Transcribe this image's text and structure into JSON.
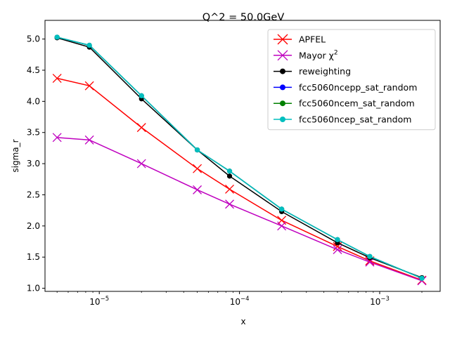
{
  "chart_data": {
    "type": "line",
    "title": "Q^2 = 50.0GeV",
    "xlabel": "x",
    "ylabel": "sigma_r",
    "xscale": "log",
    "xlim": [
      4.1e-06,
      0.0027
    ],
    "ylim": [
      0.95,
      5.3
    ],
    "yticks": [
      1.0,
      1.5,
      2.0,
      2.5,
      3.0,
      3.5,
      4.0,
      4.5,
      5.0
    ],
    "ytick_labels": [
      "1.0",
      "1.5",
      "2.0",
      "2.5",
      "3.0",
      "3.5",
      "4.0",
      "4.5",
      "5.0"
    ],
    "xticks": [
      1e-05,
      0.0001,
      0.001
    ],
    "xtick_labels": [
      {
        "base": "10",
        "exp": "−5"
      },
      {
        "base": "10",
        "exp": "−4"
      },
      {
        "base": "10",
        "exp": "−3"
      }
    ],
    "x": [
      5e-06,
      8.5e-06,
      2e-05,
      5e-05,
      8.5e-05,
      0.0002,
      0.0005,
      0.00085,
      0.002
    ],
    "legend_position": "upper-right",
    "grid": false,
    "series": [
      {
        "name": "APFEL",
        "color": "#ff0000",
        "marker": "x",
        "values": [
          4.37,
          4.25,
          3.58,
          2.92,
          2.59,
          2.09,
          1.67,
          1.44,
          1.13
        ]
      },
      {
        "name": "Mayor χ",
        "name_sup": "2",
        "color": "#bf00bf",
        "marker": "x",
        "values": [
          3.42,
          3.38,
          3.0,
          2.58,
          2.35,
          2.0,
          1.62,
          1.42,
          1.12
        ]
      },
      {
        "name": "reweighting",
        "color": "#000000",
        "marker": "o",
        "values": [
          5.02,
          4.87,
          4.04,
          3.22,
          2.8,
          2.23,
          1.73,
          1.49,
          1.17
        ]
      },
      {
        "name": "fcc5060ncepp_sat_random",
        "color": "#0000ff",
        "marker": "o",
        "values": [
          5.03,
          4.9,
          4.09,
          3.22,
          2.88,
          2.27,
          1.78,
          1.51,
          1.16
        ]
      },
      {
        "name": "fcc5060ncem_sat_random",
        "color": "#008000",
        "marker": "o",
        "values": [
          5.03,
          4.9,
          4.09,
          3.22,
          2.88,
          2.27,
          1.78,
          1.51,
          1.16
        ]
      },
      {
        "name": "fcc5060ncep_sat_random",
        "color": "#00bfbf",
        "marker": "o",
        "values": [
          5.03,
          4.9,
          4.09,
          3.22,
          2.88,
          2.27,
          1.78,
          1.51,
          1.16
        ]
      }
    ]
  }
}
